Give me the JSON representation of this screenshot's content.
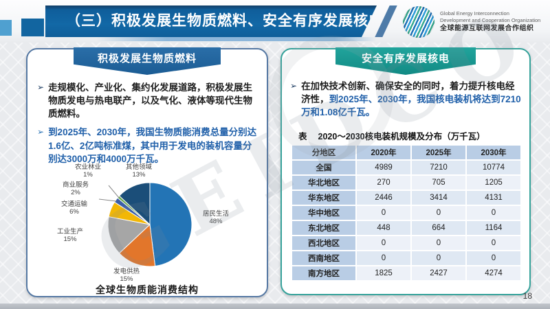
{
  "header": {
    "title": "（三）积极发展生物质燃料、安全有序发展核电",
    "logo": {
      "line1": "Global Energy Interconnection",
      "line2": "Development and Cooperation Organization",
      "line3": "全球能源互联网发展合作组织"
    }
  },
  "watermark": "GEIDCO",
  "page_number": "18",
  "left_panel": {
    "title": "积极发展生物质燃料",
    "bullets": [
      {
        "text": "走规模化、产业化、集约化发展道路，积极发展生物质发电与热电联产，以及气化、液体等现代生物质燃料。",
        "style": "dark"
      },
      {
        "text": "到2025年、2030年，我国生物质能消费总量分别达1.6亿、2亿吨标准煤，其中用于发电的装机容量分别达3000万和4000万千瓦。",
        "style": "blue"
      }
    ],
    "chart_caption": "全球生物质能消费结构"
  },
  "chart_data": {
    "type": "pie",
    "title": "全球生物质能消费结构",
    "start_angle": "12点钟方向顺时针",
    "slices": [
      {
        "label": "居民生活",
        "value": 48,
        "pct_label": "48%",
        "color": "#2374B5"
      },
      {
        "label": "发电供热",
        "value": 15,
        "pct_label": "15%",
        "color": "#E2762B"
      },
      {
        "label": "工业生产",
        "value": 15,
        "pct_label": "15%",
        "color": "#A6A6A6"
      },
      {
        "label": "交通运输",
        "value": 6,
        "pct_label": "6%",
        "color": "#F2B705"
      },
      {
        "label": "商业服务",
        "value": 2,
        "pct_label": "2%",
        "color": "#3B5FA8"
      },
      {
        "label": "农业林业",
        "value": 1,
        "pct_label": "1%",
        "color": "#6AA84F"
      },
      {
        "label": "其他领域",
        "value": 13,
        "pct_label": "13%",
        "color": "#1B4E79"
      }
    ]
  },
  "right_panel": {
    "title": "安全有序发展核电",
    "bullet_dark": "在加快技术创新、确保安全的同时，着力提升核电经济性，",
    "bullet_blue": "到2025年、2030年，我国核电装机将达到7210万和1.08亿千瓦。",
    "table_label": "表",
    "table_title": "2020～2030核电装机规模及分布（万千瓦）",
    "table": {
      "headers": [
        "分地区",
        "2020年",
        "2025年",
        "2030年"
      ],
      "rows": [
        [
          "全国",
          "4989",
          "7210",
          "10774"
        ],
        [
          "华北地区",
          "270",
          "705",
          "1205"
        ],
        [
          "华东地区",
          "2446",
          "3414",
          "4131"
        ],
        [
          "华中地区",
          "0",
          "0",
          "0"
        ],
        [
          "东北地区",
          "448",
          "664",
          "1164"
        ],
        [
          "西北地区",
          "0",
          "0",
          "0"
        ],
        [
          "西南地区",
          "0",
          "0",
          "0"
        ],
        [
          "南方地区",
          "1825",
          "2427",
          "4274"
        ]
      ]
    }
  }
}
